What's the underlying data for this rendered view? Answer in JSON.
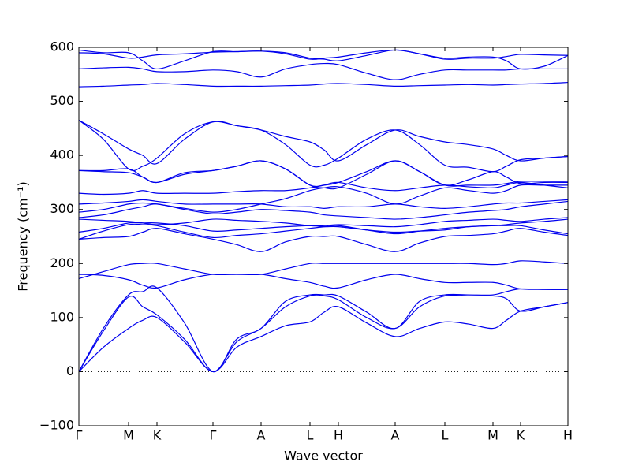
{
  "chart_data": {
    "type": "line",
    "ylabel": "Frequency (cm⁻¹)",
    "xlabel": "Wave vector",
    "color": "#0000ee",
    "reference_line": 0,
    "x": [
      0,
      31,
      63,
      81,
      99,
      134,
      170,
      200,
      231,
      262,
      293,
      311,
      329,
      365,
      401,
      432,
      464,
      494,
      525,
      542,
      560,
      590,
      620
    ],
    "xlim": [
      0,
      620
    ],
    "xticks": [
      {
        "value": 0,
        "label": "Γ"
      },
      {
        "value": 63,
        "label": "M"
      },
      {
        "value": 99,
        "label": "K"
      },
      {
        "value": 170,
        "label": "Γ"
      },
      {
        "value": 231,
        "label": "A"
      },
      {
        "value": 293,
        "label": "L"
      },
      {
        "value": 329,
        "label": "H"
      },
      {
        "value": 401,
        "label": "A"
      },
      {
        "value": 464,
        "label": "L"
      },
      {
        "value": 525,
        "label": "M"
      },
      {
        "value": 560,
        "label": "K"
      },
      {
        "value": 620,
        "label": "H"
      }
    ],
    "ylim": [
      -100,
      600
    ],
    "yticks": [
      {
        "value": -100,
        "label": "−100"
      },
      0,
      100,
      200,
      300,
      400,
      500,
      600
    ],
    "series": [
      {
        "values": [
          0,
          45,
          80,
          95,
          100,
          55,
          0,
          45,
          65,
          85,
          92,
          110,
          120,
          90,
          65,
          80,
          92,
          88,
          80,
          95,
          112,
          120,
          128
        ]
      },
      {
        "values": [
          0,
          75,
          138,
          120,
          105,
          60,
          0,
          55,
          80,
          120,
          140,
          140,
          133,
          100,
          80,
          120,
          140,
          140,
          140,
          135,
          112,
          120,
          128
        ]
      },
      {
        "values": [
          0,
          80,
          142,
          148,
          155,
          90,
          0,
          60,
          80,
          130,
          142,
          142,
          140,
          110,
          80,
          130,
          142,
          142,
          142,
          148,
          153,
          152,
          152
        ]
      },
      {
        "values": [
          180,
          178,
          170,
          160,
          155,
          170,
          180,
          180,
          180,
          172,
          165,
          158,
          155,
          170,
          180,
          172,
          165,
          165,
          165,
          160,
          153,
          152,
          152
        ]
      },
      {
        "values": [
          172,
          185,
          198,
          200,
          200,
          190,
          180,
          180,
          180,
          190,
          200,
          200,
          200,
          200,
          200,
          200,
          200,
          200,
          198,
          200,
          205,
          203,
          200
        ]
      },
      {
        "values": [
          245,
          248,
          250,
          258,
          265,
          255,
          245,
          235,
          222,
          240,
          250,
          250,
          250,
          235,
          222,
          238,
          250,
          252,
          255,
          260,
          265,
          258,
          252
        ]
      },
      {
        "values": [
          245,
          260,
          272,
          272,
          270,
          258,
          248,
          252,
          255,
          260,
          265,
          268,
          270,
          262,
          255,
          260,
          265,
          268,
          270,
          270,
          270,
          262,
          255
        ]
      },
      {
        "values": [
          258,
          265,
          275,
          275,
          275,
          270,
          260,
          262,
          265,
          268,
          270,
          268,
          268,
          262,
          258,
          260,
          262,
          268,
          270,
          272,
          275,
          278,
          282
        ]
      },
      {
        "values": [
          282,
          280,
          278,
          275,
          272,
          275,
          282,
          280,
          278,
          275,
          270,
          270,
          272,
          270,
          268,
          272,
          278,
          280,
          282,
          280,
          278,
          282,
          285
        ]
      },
      {
        "values": [
          285,
          290,
          300,
          305,
          310,
          300,
          292,
          295,
          300,
          298,
          295,
          290,
          288,
          285,
          282,
          285,
          290,
          295,
          298,
          300,
          305,
          310,
          315
        ]
      },
      {
        "values": [
          295,
          300,
          310,
          312,
          310,
          302,
          295,
          300,
          310,
          320,
          335,
          340,
          342,
          330,
          310,
          325,
          340,
          335,
          330,
          335,
          345,
          345,
          345
        ]
      },
      {
        "values": [
          310,
          312,
          315,
          318,
          315,
          310,
          310,
          310,
          310,
          305,
          305,
          302,
          305,
          305,
          310,
          305,
          302,
          305,
          310,
          312,
          312,
          315,
          318
        ]
      },
      {
        "values": [
          330,
          328,
          330,
          335,
          330,
          330,
          330,
          333,
          335,
          335,
          340,
          345,
          350,
          340,
          335,
          340,
          345,
          342,
          340,
          345,
          350,
          345,
          340
        ]
      },
      {
        "values": [
          372,
          370,
          368,
          360,
          350,
          365,
          372,
          380,
          390,
          375,
          345,
          340,
          340,
          365,
          390,
          370,
          345,
          355,
          370,
          360,
          348,
          350,
          350
        ]
      },
      {
        "values": [
          372,
          372,
          375,
          360,
          350,
          368,
          372,
          380,
          390,
          375,
          345,
          345,
          350,
          370,
          390,
          370,
          345,
          345,
          345,
          348,
          352,
          352,
          352
        ]
      },
      {
        "values": [
          465,
          440,
          412,
          400,
          385,
          430,
          462,
          455,
          447,
          435,
          425,
          410,
          390,
          420,
          447,
          435,
          425,
          420,
          412,
          400,
          390,
          395,
          398
        ]
      },
      {
        "values": [
          465,
          430,
          375,
          380,
          395,
          440,
          462,
          455,
          447,
          420,
          382,
          382,
          395,
          430,
          447,
          420,
          382,
          378,
          370,
          380,
          392,
          395,
          398
        ]
      },
      {
        "values": [
          527,
          528,
          530,
          531,
          533,
          531,
          528,
          528,
          528,
          529,
          530,
          532,
          533,
          531,
          528,
          529,
          530,
          531,
          530,
          531,
          532,
          533,
          535
        ]
      },
      {
        "values": [
          560,
          562,
          563,
          560,
          555,
          555,
          558,
          555,
          545,
          560,
          568,
          570,
          568,
          552,
          540,
          550,
          558,
          558,
          558,
          558,
          560,
          560,
          560
        ]
      },
      {
        "values": [
          590,
          588,
          580,
          582,
          586,
          588,
          591,
          592,
          593,
          588,
          578,
          580,
          582,
          590,
          595,
          588,
          578,
          580,
          580,
          583,
          587,
          586,
          585
        ]
      },
      {
        "values": [
          595,
          590,
          590,
          575,
          560,
          575,
          592,
          592,
          593,
          590,
          580,
          578,
          575,
          585,
          595,
          588,
          580,
          582,
          582,
          575,
          560,
          565,
          585
        ]
      }
    ]
  }
}
